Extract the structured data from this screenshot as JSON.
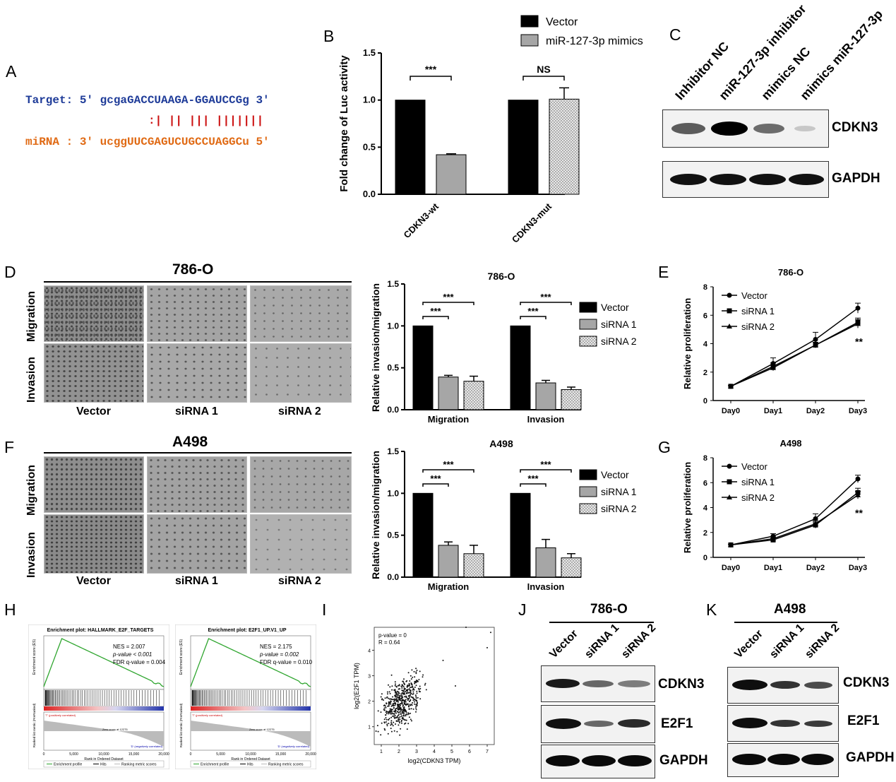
{
  "panel_letters": {
    "A": "A",
    "B": "B",
    "C": "C",
    "D": "D",
    "E": "E",
    "F": "F",
    "G": "G",
    "H": "H",
    "I": "I",
    "J": "J",
    "K": "K"
  },
  "panelA": {
    "target": "Target: 5' gcgaGACCUAAGA-GGAUCCGg 3'",
    "pairs": ":| || ||| |||||||",
    "mirna": "miRNA : 3' ucggUUCGAGUCUGCCUAGGCu 5'",
    "target_color": "#1f3c99",
    "mirna_color": "#e06a14",
    "pair_color": "#cc1111"
  },
  "panelC": {
    "lanes": [
      "Inhibitor NC",
      "miR-127-3p inhibitor",
      "mimics NC",
      "mimics miR-127-3p"
    ],
    "bands": [
      "CDKN3",
      "GAPDH"
    ]
  },
  "panelD": {
    "cell": "786-O",
    "rows": [
      "Migration",
      "Invasion"
    ],
    "cols": [
      "Vector",
      "siRNA 1",
      "siRNA 2"
    ]
  },
  "panelF": {
    "cell": "A498",
    "rows": [
      "Migration",
      "Invasion"
    ],
    "cols": [
      "Vector",
      "siRNA 1",
      "siRNA 2"
    ]
  },
  "panelH": {
    "plots": [
      {
        "title": "Enrichment plot: HALLMARK_E2F_TARGETS",
        "nes": "NES = 2.007",
        "p": "p-value < 0.001",
        "fdr": "FDR q-value = 0.004"
      },
      {
        "title": "Enrichment plot: E2F1_UP.V1_UP",
        "nes": "NES = 2.175",
        "p": "p-value = 0.002",
        "fdr": "FDR q-value = 0.010"
      }
    ],
    "ylab_top": "Enrichment score (ES)",
    "ylab_bottom": "Ranked list metric (PreRanked)",
    "xlab": "Rank in Ordered Dataset",
    "pos_label": "'T' (positively correlated)",
    "neg_label": "'D' (negatively correlated)",
    "zero_cross": "Zero cross at 12275",
    "xticks": [
      "0",
      "5,000",
      "10,000",
      "15,000",
      "20,000"
    ],
    "legend": [
      "Enrichment profile",
      "Hits",
      "Ranking metric scores"
    ]
  },
  "panelJ": {
    "cell": "786-O",
    "lanes": [
      "Vector",
      "siRNA 1",
      "siRNA 2"
    ],
    "bands": [
      "CDKN3",
      "E2F1",
      "GAPDH"
    ]
  },
  "panelK": {
    "cell": "A498",
    "lanes": [
      "Vector",
      "siRNA 1",
      "siRNA 2"
    ],
    "bands": [
      "CDKN3",
      "E2F1",
      "GAPDH"
    ]
  },
  "chart_data": [
    {
      "id": "B",
      "type": "bar",
      "categories": [
        "CDKN3-wt",
        "CDKN3-mut"
      ],
      "series": [
        {
          "name": "Vector",
          "values": [
            1.0,
            1.0
          ],
          "errors": [
            0,
            0
          ],
          "color": "#000000"
        },
        {
          "name": "miR-127-3p mimics",
          "values": [
            0.42,
            1.01
          ],
          "errors": [
            0.01,
            0.12
          ],
          "color": "#a6a6a6"
        }
      ],
      "ylabel": "Fold change of Luc activity",
      "ylim": [
        0,
        1.5
      ],
      "yticks": [
        "0.0",
        "0.5",
        "1.0",
        "1.5"
      ],
      "annotations": [
        "***",
        "NS"
      ]
    },
    {
      "id": "D",
      "type": "bar",
      "title": "786-O",
      "categories": [
        "Migration",
        "Invasion"
      ],
      "series": [
        {
          "name": "Vector",
          "values": [
            1.0,
            1.0
          ],
          "errors": [
            0,
            0
          ]
        },
        {
          "name": "siRNA 1",
          "values": [
            0.39,
            0.32
          ],
          "errors": [
            0.02,
            0.03
          ]
        },
        {
          "name": "siRNA 2",
          "values": [
            0.34,
            0.24
          ],
          "errors": [
            0.06,
            0.03
          ]
        }
      ],
      "ylabel": "Relative invasion/migration",
      "ylim": [
        0,
        1.5
      ],
      "yticks": [
        "0.0",
        "0.5",
        "1.0",
        "1.5"
      ],
      "annotations": [
        "***",
        "***",
        "***",
        "***"
      ]
    },
    {
      "id": "F",
      "type": "bar",
      "title": "A498",
      "categories": [
        "Migration",
        "Invasion"
      ],
      "series": [
        {
          "name": "Vector",
          "values": [
            1.0,
            1.0
          ],
          "errors": [
            0,
            0
          ]
        },
        {
          "name": "siRNA 1",
          "values": [
            0.38,
            0.35
          ],
          "errors": [
            0.04,
            0.1
          ]
        },
        {
          "name": "siRNA 2",
          "values": [
            0.28,
            0.23
          ],
          "errors": [
            0.1,
            0.05
          ]
        }
      ],
      "ylabel": "Relative invasion/migration",
      "ylim": [
        0,
        1.5
      ],
      "yticks": [
        "0.0",
        "0.5",
        "1.0",
        "1.5"
      ],
      "annotations": [
        "***",
        "***",
        "***",
        "***"
      ]
    },
    {
      "id": "E",
      "type": "line",
      "title": "786-O",
      "x": [
        "Day0",
        "Day1",
        "Day2",
        "Day3"
      ],
      "series": [
        {
          "name": "Vector",
          "marker": "circle",
          "values": [
            1.0,
            2.6,
            4.3,
            6.5
          ],
          "errors": [
            0.05,
            0.4,
            0.5,
            0.35
          ]
        },
        {
          "name": "siRNA 1",
          "marker": "square",
          "values": [
            1.0,
            2.4,
            3.9,
            5.5
          ],
          "errors": [
            0.05,
            0.25,
            0.2,
            0.3
          ]
        },
        {
          "name": "siRNA 2",
          "marker": "triangle",
          "values": [
            1.0,
            2.3,
            3.9,
            5.4
          ],
          "errors": [
            0.05,
            0.2,
            0.2,
            0.3
          ]
        }
      ],
      "ylabel": "Relative proliferation",
      "ylim": [
        0,
        8
      ],
      "yticks": [
        "0",
        "2",
        "4",
        "6",
        "8"
      ],
      "annotations": [
        "**"
      ]
    },
    {
      "id": "G",
      "type": "line",
      "title": "A498",
      "x": [
        "Day0",
        "Day1",
        "Day2",
        "Day3"
      ],
      "series": [
        {
          "name": "Vector",
          "marker": "circle",
          "values": [
            1.0,
            1.7,
            3.1,
            6.3
          ],
          "errors": [
            0.05,
            0.2,
            0.4,
            0.3
          ]
        },
        {
          "name": "siRNA 1",
          "marker": "square",
          "values": [
            1.0,
            1.4,
            2.6,
            5.2
          ],
          "errors": [
            0.05,
            0.15,
            0.25,
            0.35
          ]
        },
        {
          "name": "siRNA 2",
          "marker": "triangle",
          "values": [
            1.0,
            1.5,
            2.7,
            5.0
          ],
          "errors": [
            0.05,
            0.15,
            0.25,
            0.3
          ]
        }
      ],
      "ylabel": "Relative proliferation",
      "ylim": [
        0,
        8
      ],
      "yticks": [
        "0",
        "2",
        "4",
        "6",
        "8"
      ],
      "annotations": [
        "**"
      ]
    },
    {
      "id": "I",
      "type": "scatter",
      "xlabel": "log2(CDKN3 TPM)",
      "ylabel": "log2(E2F1 TPM)",
      "xticks": [
        "1",
        "2",
        "3",
        "4",
        "5",
        "6",
        "7"
      ],
      "yticks": [
        "1",
        "2",
        "3",
        "4"
      ],
      "xlim": [
        0.6,
        7.4
      ],
      "ylim": [
        0.3,
        4.9
      ],
      "annotations": [
        "p-value = 0",
        "R = 0.64"
      ],
      "n_points": 520
    }
  ]
}
